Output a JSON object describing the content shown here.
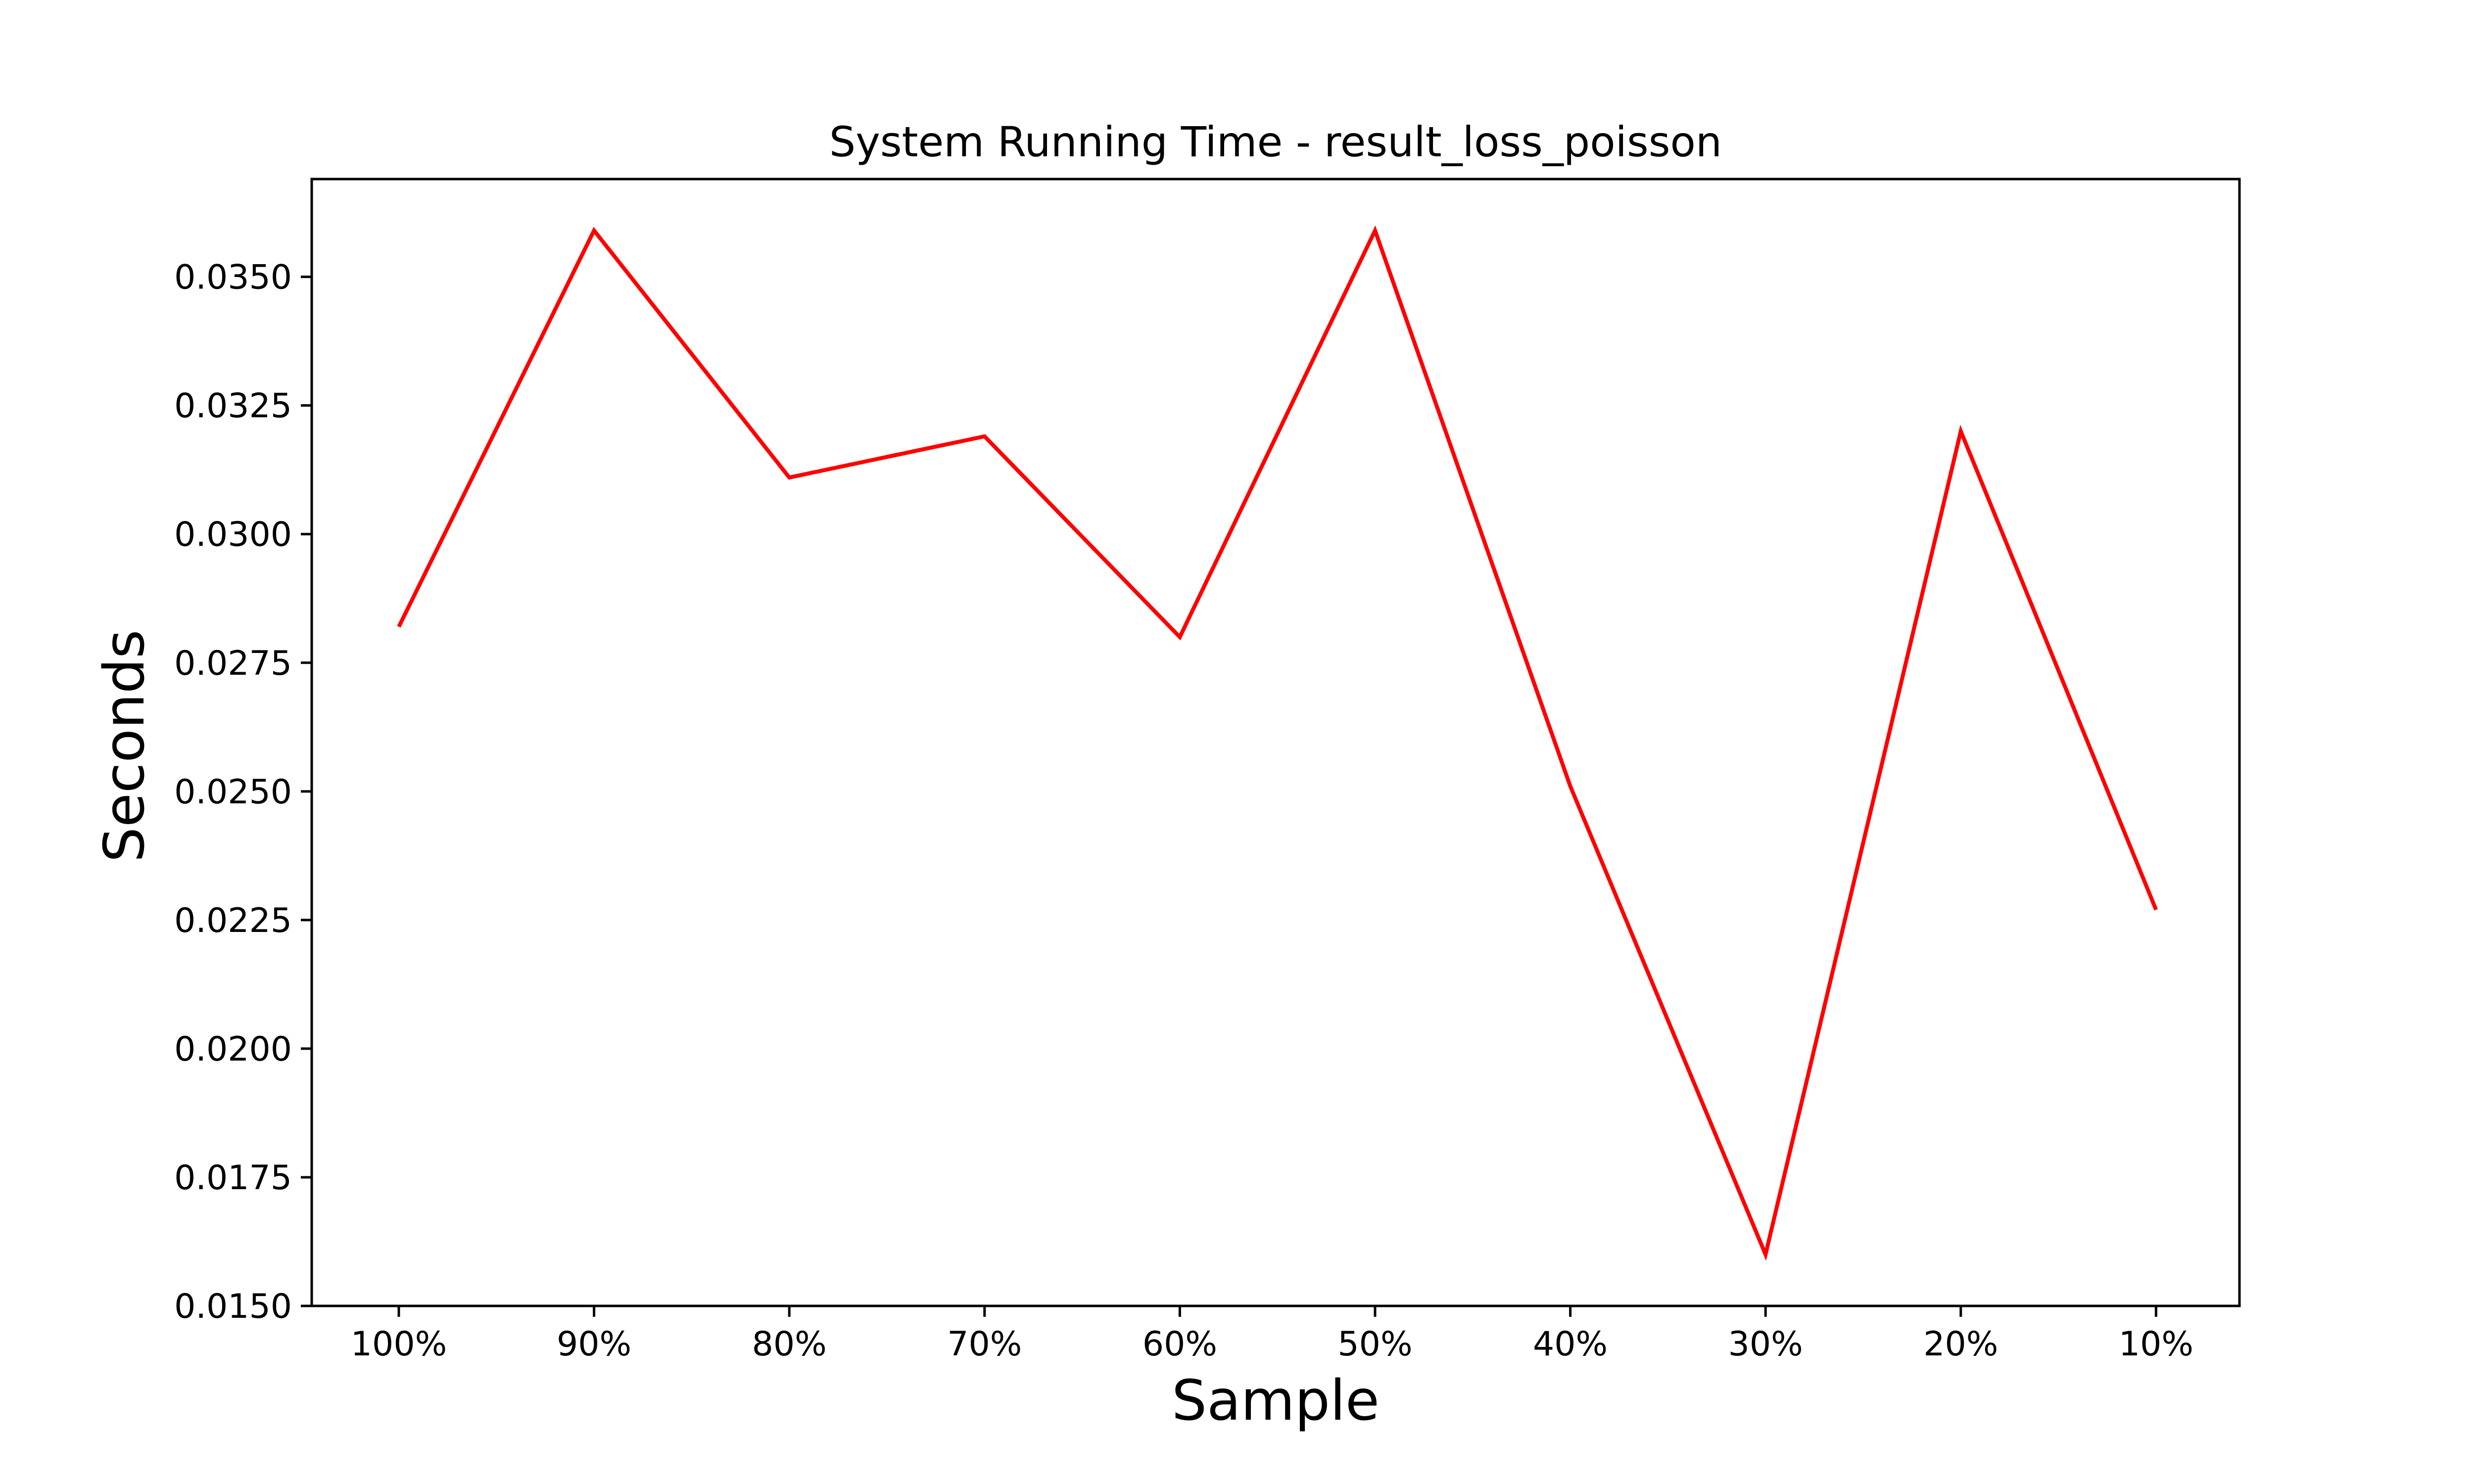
{
  "chart_data": {
    "type": "line",
    "title": "System Running Time - result_loss_poisson",
    "xlabel": "Sample",
    "ylabel": "Seconds",
    "categories": [
      "100%",
      "90%",
      "80%",
      "70%",
      "60%",
      "50%",
      "40%",
      "30%",
      "20%",
      "10%"
    ],
    "series": [
      {
        "color": "#ff0000",
        "values": [
          0.0282,
          0.0359,
          0.0311,
          0.0319,
          0.028,
          0.0359,
          0.0251,
          0.016,
          0.032,
          0.0227
        ]
      }
    ],
    "ylim": [
      0.015,
      0.0369
    ],
    "yticks": [
      "0.0150",
      "0.0175",
      "0.0200",
      "0.0225",
      "0.0250",
      "0.0275",
      "0.0300",
      "0.0325",
      "0.0350"
    ],
    "grid": false,
    "legend": "none"
  }
}
